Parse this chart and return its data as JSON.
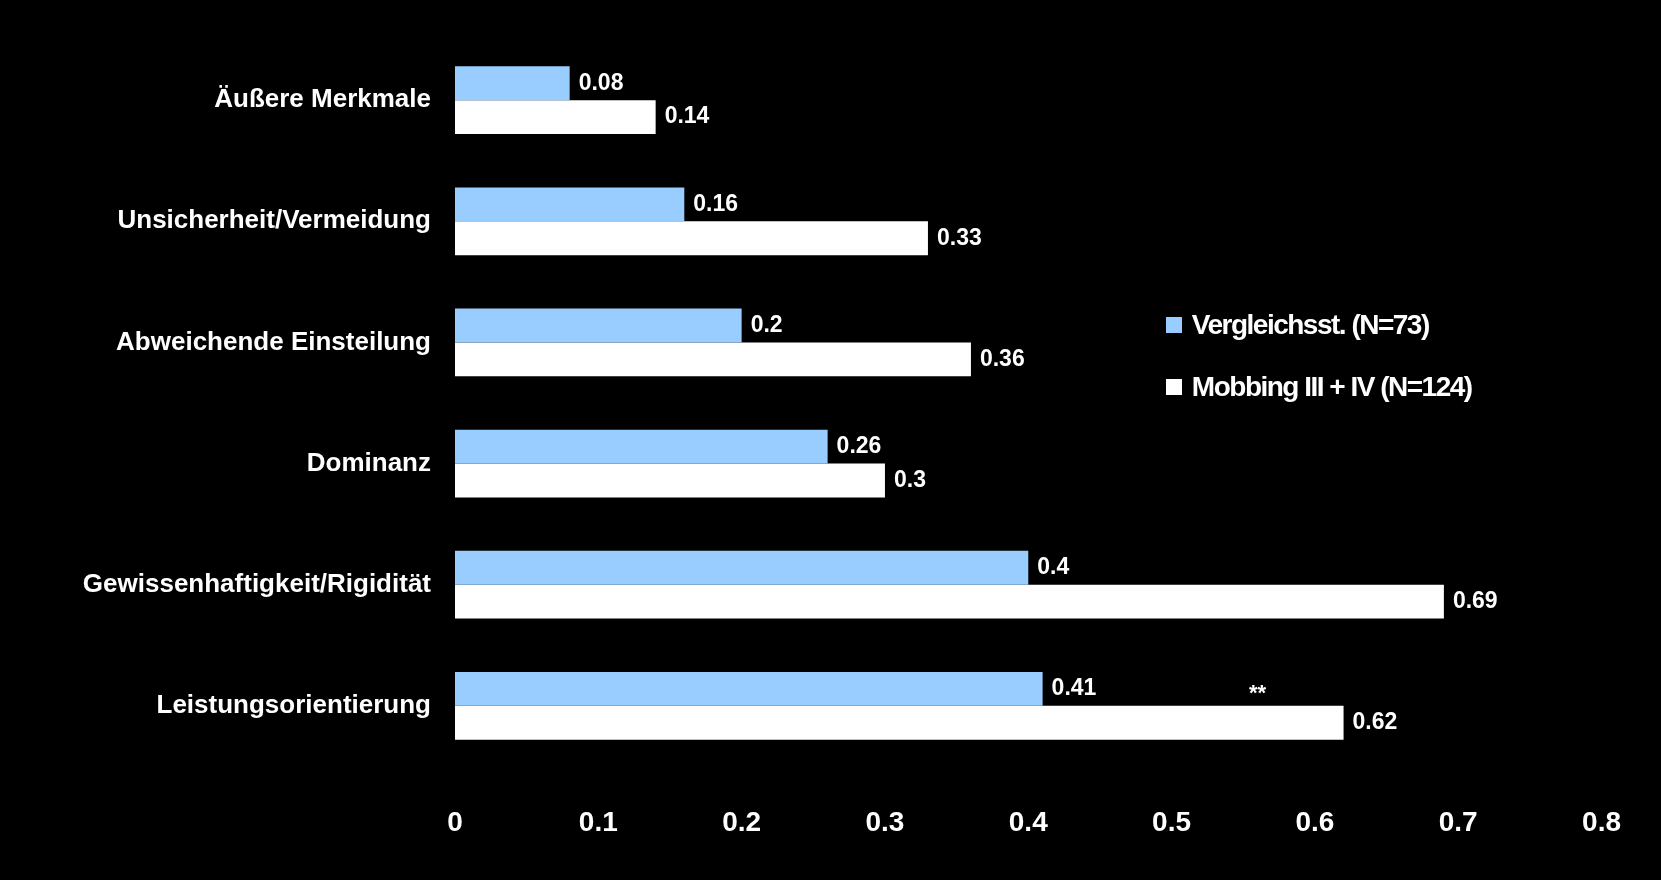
{
  "chart_data": {
    "type": "bar",
    "orientation": "horizontal",
    "categories": [
      "Äußere Merkmale",
      "Unsicherheit/Vermeidung",
      "Abweichende Einsteilung",
      "Dominanz",
      "Gewissenhaftigkeit/Rigidität",
      "Leistungsorientierung"
    ],
    "series": [
      {
        "name": "Vergleichsst. (N=73)",
        "color": "#99ccff",
        "values": [
          0.08,
          0.16,
          0.2,
          0.26,
          0.4,
          0.41
        ]
      },
      {
        "name": "Mobbing III + IV (N=124)",
        "color": "#ffffff",
        "values": [
          0.14,
          0.33,
          0.36,
          0.3,
          0.69,
          0.62
        ]
      }
    ],
    "xlim": [
      0,
      0.8
    ],
    "xticks": [
      0,
      0.1,
      0.2,
      0.3,
      0.4,
      0.5,
      0.6,
      0.7,
      0.8
    ],
    "grid": false,
    "legend": "right",
    "data_labels": true,
    "annotations": [
      {
        "text": "**",
        "x": 0.56,
        "y": "Leistungsorientierung"
      }
    ]
  }
}
